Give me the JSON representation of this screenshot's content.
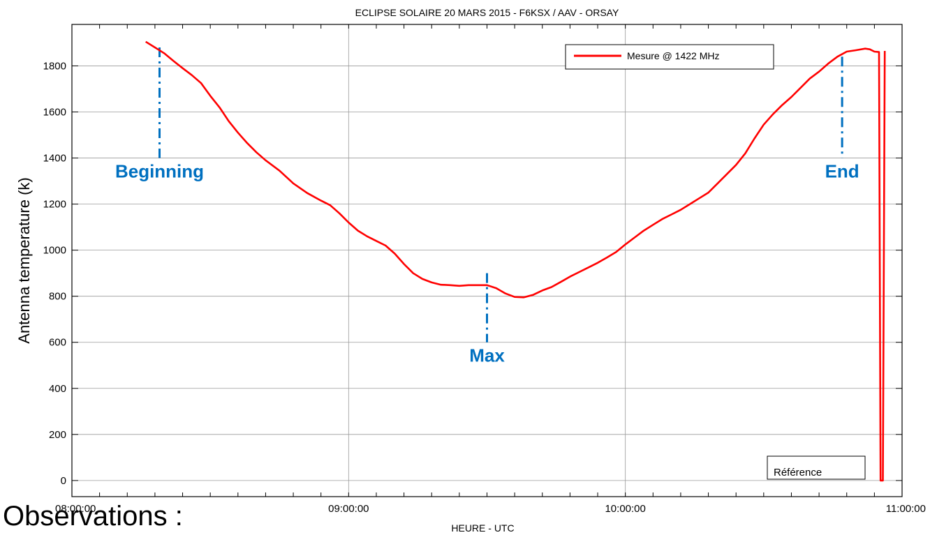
{
  "chart_data": {
    "type": "line",
    "title": "ECLIPSE SOLAIRE 20 MARS 2015 - F6KSX / AAV - ORSAY",
    "xlabel": "HEURE - UTC",
    "ylabel": "Antenna temperature (k)",
    "x_ticks": [
      "08:00:00",
      "09:00:00",
      "10:00:00",
      "11:00:00"
    ],
    "y_ticks": [
      0,
      200,
      400,
      600,
      800,
      1000,
      1200,
      1400,
      1600,
      1800
    ],
    "xlim": [
      "08:00:00",
      "11:00:00"
    ],
    "ylim": [
      -70,
      1980
    ],
    "grid": true,
    "legend_position": "top-right",
    "series": [
      {
        "name": "Mesure @ 1422 MHz",
        "color": "#ff0000",
        "points": [
          [
            "08:16:00",
            1905
          ],
          [
            "08:18:00",
            1880
          ],
          [
            "08:20:00",
            1855
          ],
          [
            "08:22:00",
            1822
          ],
          [
            "08:24:00",
            1790
          ],
          [
            "08:26:00",
            1760
          ],
          [
            "08:28:00",
            1725
          ],
          [
            "08:30:00",
            1670
          ],
          [
            "08:32:00",
            1620
          ],
          [
            "08:34:00",
            1560
          ],
          [
            "08:36:00",
            1510
          ],
          [
            "08:38:00",
            1465
          ],
          [
            "08:40:00",
            1425
          ],
          [
            "08:42:00",
            1390
          ],
          [
            "08:45:00",
            1345
          ],
          [
            "08:48:00",
            1290
          ],
          [
            "08:51:00",
            1248
          ],
          [
            "08:54:00",
            1215
          ],
          [
            "08:56:00",
            1195
          ],
          [
            "08:58:00",
            1160
          ],
          [
            "09:00:00",
            1120
          ],
          [
            "09:02:00",
            1085
          ],
          [
            "09:04:00",
            1060
          ],
          [
            "09:06:00",
            1040
          ],
          [
            "09:08:00",
            1020
          ],
          [
            "09:10:00",
            985
          ],
          [
            "09:12:00",
            940
          ],
          [
            "09:14:00",
            900
          ],
          [
            "09:16:00",
            875
          ],
          [
            "09:18:00",
            860
          ],
          [
            "09:20:00",
            850
          ],
          [
            "09:22:00",
            848
          ],
          [
            "09:24:00",
            845
          ],
          [
            "09:26:00",
            848
          ],
          [
            "09:28:00",
            848
          ],
          [
            "09:30:00",
            848
          ],
          [
            "09:32:00",
            835
          ],
          [
            "09:34:00",
            812
          ],
          [
            "09:36:00",
            797
          ],
          [
            "09:38:00",
            795
          ],
          [
            "09:40:00",
            806
          ],
          [
            "09:42:00",
            825
          ],
          [
            "09:44:00",
            840
          ],
          [
            "09:46:00",
            862
          ],
          [
            "09:48:00",
            885
          ],
          [
            "09:50:00",
            905
          ],
          [
            "09:52:00",
            925
          ],
          [
            "09:54:00",
            945
          ],
          [
            "09:56:00",
            968
          ],
          [
            "09:58:00",
            992
          ],
          [
            "10:00:00",
            1025
          ],
          [
            "10:02:00",
            1055
          ],
          [
            "10:04:00",
            1085
          ],
          [
            "10:06:00",
            1110
          ],
          [
            "10:08:00",
            1135
          ],
          [
            "10:10:00",
            1155
          ],
          [
            "10:12:00",
            1175
          ],
          [
            "10:14:00",
            1200
          ],
          [
            "10:16:00",
            1225
          ],
          [
            "10:18:00",
            1250
          ],
          [
            "10:20:00",
            1290
          ],
          [
            "10:22:00",
            1330
          ],
          [
            "10:24:00",
            1370
          ],
          [
            "10:26:00",
            1420
          ],
          [
            "10:28:00",
            1485
          ],
          [
            "10:30:00",
            1545
          ],
          [
            "10:32:00",
            1590
          ],
          [
            "10:34:00",
            1630
          ],
          [
            "10:36:00",
            1665
          ],
          [
            "10:38:00",
            1705
          ],
          [
            "10:40:00",
            1745
          ],
          [
            "10:42:00",
            1775
          ],
          [
            "10:44:00",
            1810
          ],
          [
            "10:46:00",
            1840
          ],
          [
            "10:48:00",
            1862
          ],
          [
            "10:50:00",
            1868
          ],
          [
            "10:52:00",
            1875
          ],
          [
            "10:53:00",
            1872
          ],
          [
            "10:54:00",
            1862
          ],
          [
            "10:55:00",
            1860
          ],
          [
            "10:55:20",
            0
          ],
          [
            "10:55:50",
            0
          ],
          [
            "10:56:15",
            1865
          ]
        ]
      }
    ],
    "annotations": [
      {
        "label": "Beginning",
        "time": "08:19:00",
        "y_from": 1400,
        "y_to": 1880
      },
      {
        "label": "Max",
        "time": "09:30:00",
        "y_from": 600,
        "y_to": 900
      },
      {
        "label": "End",
        "time": "10:47:00",
        "y_from": 1400,
        "y_to": 1840
      }
    ],
    "reference_label": "Référence"
  },
  "footer_text": "Observations :"
}
